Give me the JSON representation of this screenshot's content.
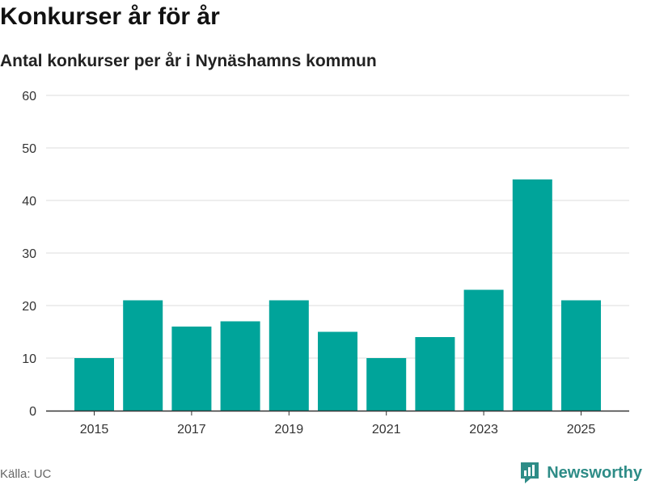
{
  "header": {
    "title": "Konkurser år för år",
    "subtitle": "Antal konkurser per år i Nynäshamns kommun"
  },
  "footer": {
    "source": "Källa: UC",
    "brand": "Newsworthy"
  },
  "colors": {
    "bar": "#00a49a",
    "grid": "#dddddd",
    "axis": "#333333",
    "brand": "#2e8c87"
  },
  "chart_data": {
    "type": "bar",
    "categories": [
      "2015",
      "2016",
      "2017",
      "2018",
      "2019",
      "2020",
      "2021",
      "2022",
      "2023",
      "2024",
      "2025"
    ],
    "values": [
      10,
      21,
      16,
      17,
      21,
      15,
      10,
      14,
      23,
      44,
      21
    ],
    "x_tick_labels": [
      "2015",
      "2017",
      "2019",
      "2021",
      "2023",
      "2025"
    ],
    "y_ticks": [
      0,
      10,
      20,
      30,
      40,
      50,
      60
    ],
    "ylim": [
      0,
      60
    ],
    "grid": true,
    "legend": "none"
  }
}
